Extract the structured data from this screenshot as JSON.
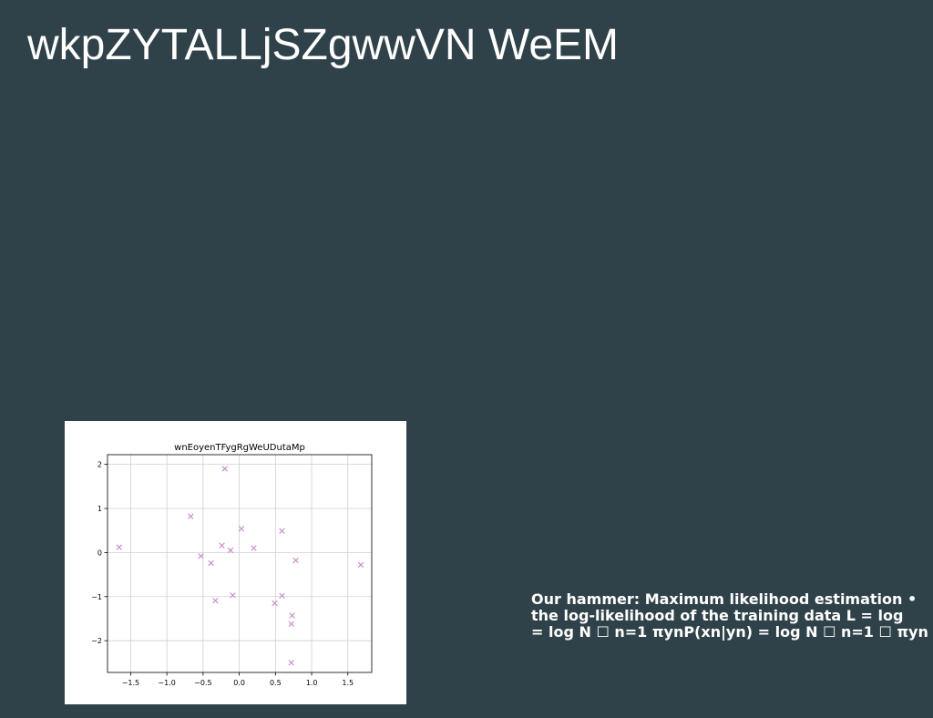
{
  "slide": {
    "title": "wkpZYTALLjSZgwwVN WeEM",
    "body_lines": [
      "Our hammer: Maximum likelihood estimation •",
      "the log-likelihood of the training data L = log",
      "= log N ☐ n=1 πynP(xn|yn) = log N ☐ n=1 ☐ πyn"
    ]
  },
  "colors": {
    "background": "#304249",
    "marker": "#c58ac8",
    "grid": "#d0d0d0"
  },
  "chart_data": {
    "type": "scatter",
    "title": "wnEoyenTFygRgWeUDutaMp",
    "xlabel": "",
    "ylabel": "",
    "xlim": [
      -1.82,
      1.83
    ],
    "ylim": [
      -2.72,
      2.22
    ],
    "grid": true,
    "marker": "x",
    "x_ticks": [
      -1.5,
      -1.0,
      -0.5,
      0.0,
      0.5,
      1.0,
      1.5
    ],
    "x_tick_labels": [
      "−1.5",
      "−1.0",
      "−0.5",
      "0.0",
      "0.5",
      "1.0",
      "1.5"
    ],
    "y_ticks": [
      2,
      1,
      0,
      -1,
      -2
    ],
    "y_tick_labels": [
      "2",
      "1",
      "0",
      "−1",
      "−2"
    ],
    "series": [
      {
        "x": [
          -1.66,
          -0.67,
          -0.2,
          -0.53,
          -0.39,
          -0.24,
          -0.12,
          0.03,
          0.2,
          0.59,
          0.78,
          1.68,
          -0.33,
          -0.09,
          0.49,
          0.59,
          0.73,
          0.72,
          0.72
        ],
        "y": [
          0.12,
          0.82,
          1.9,
          -0.08,
          -0.24,
          0.16,
          0.05,
          0.54,
          0.1,
          0.49,
          -0.18,
          -0.28,
          -1.09,
          -0.97,
          -1.15,
          -0.98,
          -1.43,
          -1.62,
          -2.5
        ]
      }
    ]
  }
}
